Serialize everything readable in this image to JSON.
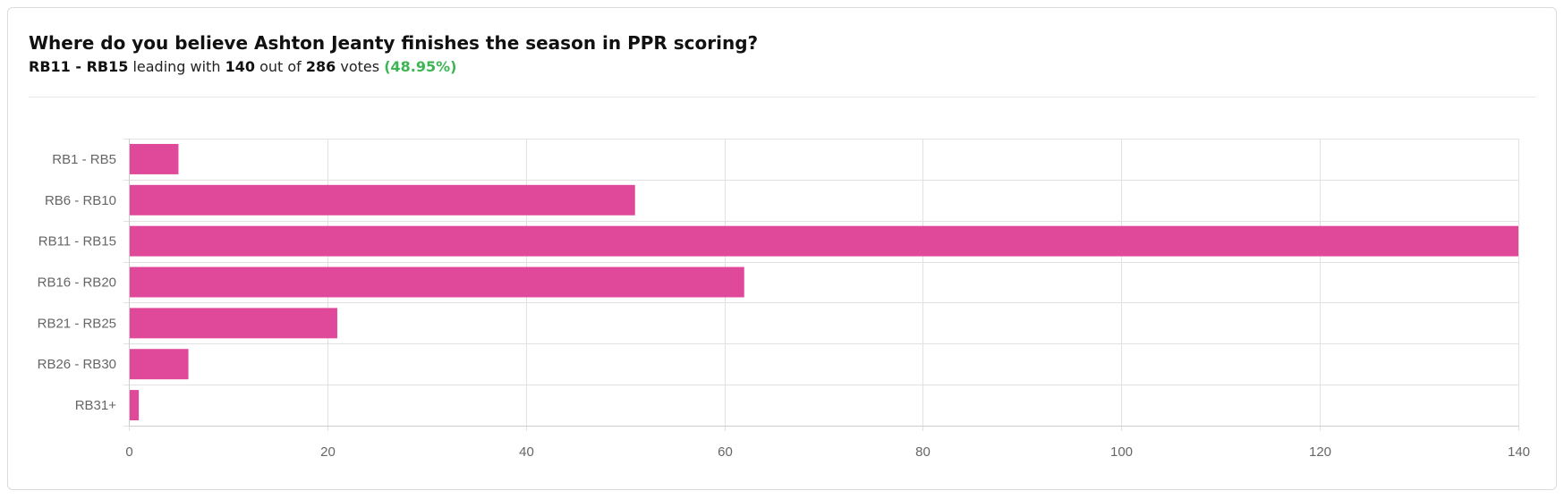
{
  "poll": {
    "question": "Where do you believe Ashton Jeanty finishes the season in PPR scoring?",
    "leader": "RB11 - RB15",
    "leading_text": "leading with",
    "leader_votes": "140",
    "out_of_text": "out of",
    "total_votes": "286",
    "votes_text": "votes",
    "leader_percent": "(48.95%)"
  },
  "colors": {
    "bar": "#e0489a",
    "percent": "#3cb553",
    "grid": "#e2e2e2",
    "axis": "#cccccc"
  },
  "chart_data": {
    "type": "bar",
    "orientation": "horizontal",
    "categories": [
      "RB1 - RB5",
      "RB6 - RB10",
      "RB11 - RB15",
      "RB16 - RB20",
      "RB21 - RB25",
      "RB26 - RB30",
      "RB31+"
    ],
    "values": [
      5,
      51,
      140,
      62,
      21,
      6,
      1
    ],
    "xlim": [
      0,
      140
    ],
    "xticks": [
      0,
      20,
      40,
      60,
      80,
      100,
      120,
      140
    ],
    "grid": true,
    "legend": false
  }
}
